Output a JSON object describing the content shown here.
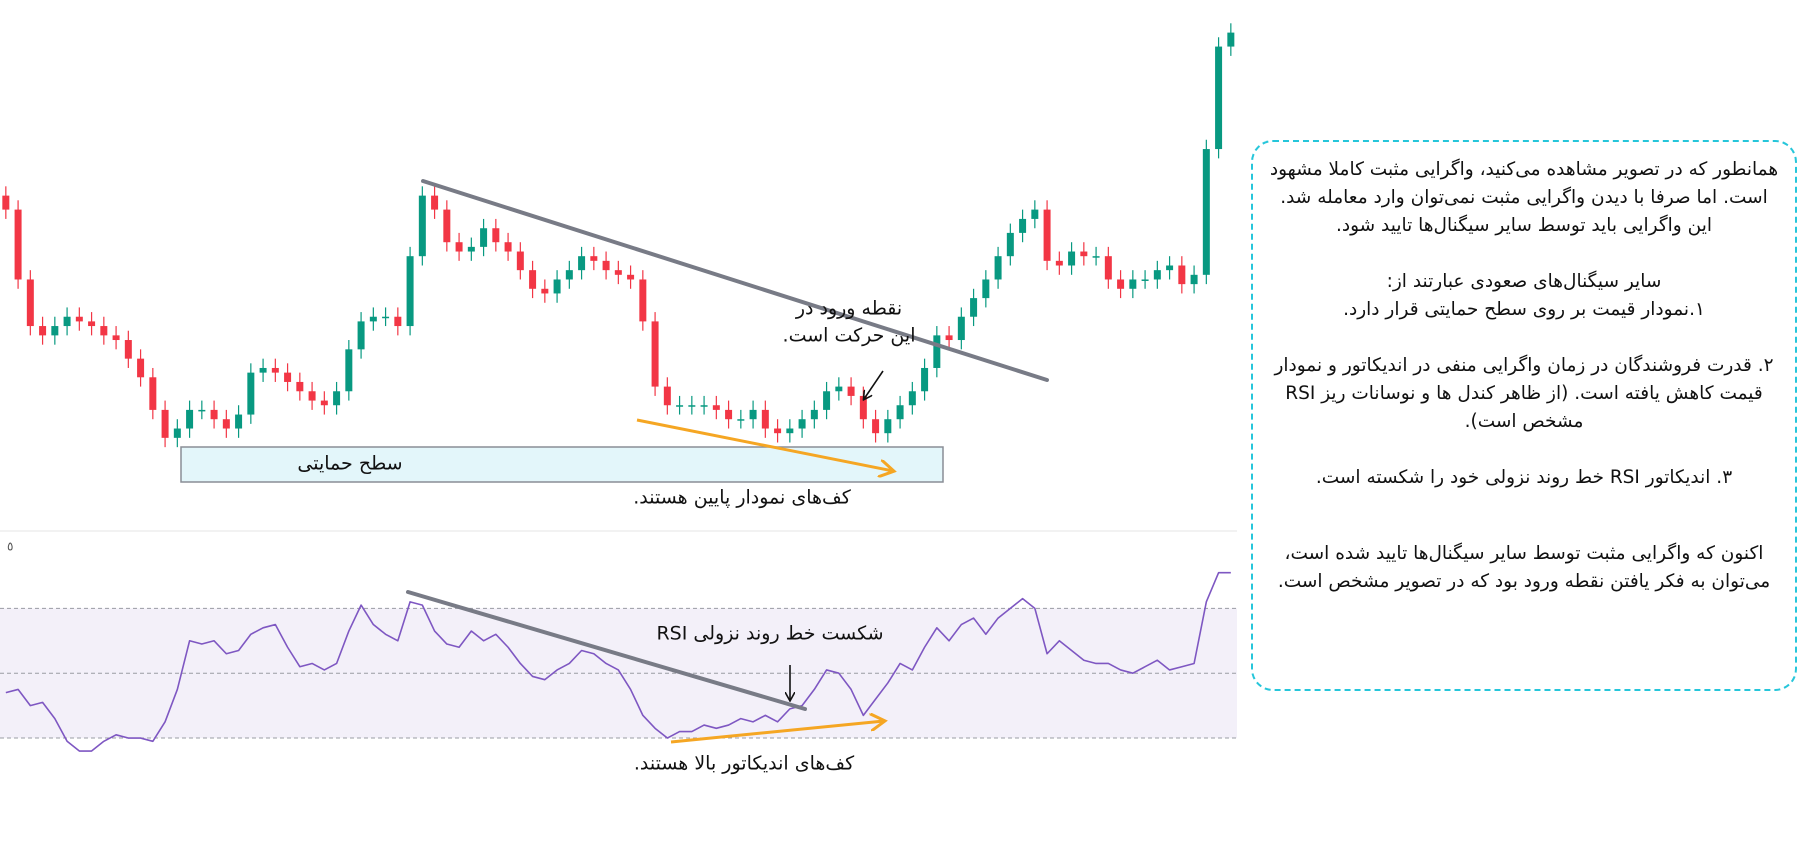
{
  "chart_data": [
    {
      "type": "candlestick",
      "open": [
        62,
        59,
        44,
        34,
        32,
        34,
        36,
        35,
        34,
        32,
        31,
        27,
        23,
        16,
        10,
        12,
        16,
        16,
        14,
        12,
        15,
        24,
        25,
        24,
        22,
        20,
        18,
        17,
        20,
        29,
        35,
        36,
        36,
        34,
        49,
        62,
        59,
        52,
        50,
        51,
        55,
        52,
        50,
        46,
        42,
        41,
        44,
        46,
        49,
        48,
        46,
        45,
        44,
        35,
        21,
        17,
        17,
        17,
        17,
        16,
        14,
        14,
        16,
        12,
        11,
        12,
        14,
        16,
        20,
        21,
        19,
        14,
        11,
        14,
        17,
        20,
        25,
        32,
        31,
        36,
        40,
        44,
        49,
        54,
        57,
        59,
        48,
        47,
        50,
        49,
        49,
        44,
        42,
        44,
        44,
        46,
        47,
        43,
        45,
        72,
        94
      ],
      "high": [
        64,
        61,
        46,
        36,
        36,
        38,
        38,
        37,
        36,
        34,
        33,
        29,
        25,
        18,
        14,
        18,
        18,
        18,
        16,
        17,
        26,
        27,
        27,
        26,
        24,
        22,
        20,
        22,
        31,
        37,
        38,
        38,
        38,
        51,
        64,
        64,
        61,
        54,
        53,
        57,
        57,
        54,
        52,
        48,
        44,
        46,
        48,
        51,
        51,
        50,
        48,
        47,
        46,
        37,
        23,
        19,
        19,
        19,
        19,
        18,
        16,
        18,
        18,
        14,
        14,
        16,
        18,
        22,
        23,
        23,
        21,
        16,
        16,
        19,
        22,
        27,
        34,
        34,
        38,
        42,
        46,
        51,
        56,
        59,
        61,
        61,
        50,
        52,
        52,
        51,
        51,
        46,
        46,
        46,
        48,
        49,
        49,
        47,
        74,
        96,
        99
      ],
      "low": [
        57,
        42,
        32,
        30,
        30,
        32,
        33,
        32,
        30,
        29,
        25,
        21,
        14,
        8,
        8,
        10,
        14,
        12,
        10,
        10,
        13,
        22,
        22,
        20,
        18,
        16,
        15,
        15,
        18,
        27,
        33,
        34,
        32,
        32,
        47,
        57,
        50,
        48,
        48,
        49,
        50,
        48,
        44,
        40,
        39,
        39,
        42,
        44,
        46,
        44,
        43,
        42,
        33,
        19,
        15,
        15,
        15,
        15,
        14,
        12,
        12,
        12,
        10,
        9,
        9,
        10,
        12,
        14,
        18,
        17,
        12,
        9,
        9,
        12,
        15,
        18,
        23,
        29,
        29,
        34,
        38,
        42,
        47,
        52,
        55,
        46,
        45,
        45,
        47,
        47,
        42,
        40,
        40,
        42,
        42,
        44,
        41,
        41,
        43,
        70,
        92
      ],
      "close": [
        59,
        44,
        34,
        32,
        34,
        36,
        35,
        34,
        32,
        31,
        27,
        23,
        16,
        10,
        12,
        16,
        16,
        14,
        12,
        15,
        24,
        25,
        24,
        22,
        20,
        18,
        17,
        20,
        29,
        35,
        36,
        36,
        34,
        49,
        62,
        59,
        52,
        50,
        51,
        55,
        52,
        50,
        46,
        42,
        41,
        44,
        46,
        49,
        48,
        46,
        45,
        44,
        35,
        21,
        17,
        17,
        17,
        17,
        16,
        14,
        14,
        16,
        12,
        11,
        12,
        14,
        16,
        20,
        21,
        19,
        14,
        11,
        14,
        17,
        20,
        25,
        32,
        31,
        36,
        40,
        44,
        49,
        54,
        57,
        59,
        48,
        47,
        50,
        49,
        49,
        44,
        42,
        44,
        44,
        46,
        47,
        43,
        45,
        72,
        94,
        97
      ],
      "ylim": [
        -10,
        104
      ],
      "up_color": "#089981",
      "down_color": "#f23645"
    },
    {
      "type": "line",
      "label": "٥",
      "values": [
        44,
        45,
        40,
        41,
        36,
        29,
        26,
        26,
        29,
        31,
        30,
        30,
        29,
        35,
        45,
        60,
        59,
        60,
        56,
        57,
        62,
        64,
        65,
        58,
        52,
        53,
        51,
        53,
        63,
        71,
        65,
        62,
        60,
        72,
        71,
        63,
        59,
        58,
        63,
        60,
        62,
        58,
        53,
        49,
        48,
        51,
        53,
        57,
        56,
        53,
        51,
        45,
        37,
        33,
        30,
        32,
        32,
        34,
        33,
        34,
        36,
        35,
        37,
        35,
        39,
        40,
        45,
        51,
        50,
        45,
        37,
        42,
        47,
        53,
        51,
        58,
        64,
        60,
        65,
        67,
        62,
        67,
        70,
        73,
        70,
        56,
        60,
        57,
        54,
        53,
        53,
        51,
        50,
        52,
        54,
        51,
        52,
        53,
        72,
        81,
        81
      ],
      "ylim": [
        22,
        92
      ],
      "levels": [
        30,
        50,
        70
      ],
      "color": "#7e57c2"
    }
  ],
  "annotations": {
    "entry_point": [
      "نقطه ورود در",
      "این حرکت است."
    ],
    "support_level": "سطح حمایتی",
    "price_lows": "کف‌های نمودار پایین هستند.",
    "rsi_break": "شکست خط روند نزولی RSI",
    "rsi_lows": "کف‌های اندیکاتور بالا هستند."
  },
  "text_box": {
    "paragraphs": [
      "همانطور که در تصویر مشاهده می‌کنید، واگرایی مثبت کاملا مشهود است. اما صرفا با دیدن واگرایی مثبت نمی‌توان وارد معامله شد. این واگرایی باید توسط سایر سیگنال‌ها تایید شود.",
      "سایر سیگنال‌های صعودی عبارتند از:",
      "۱.نمودار قیمت بر روی سطح حمایتی قرار دارد.",
      "۲. قدرت فروشندگان در زمان واگرایی منفی در اندیکاتور و نمودار قیمت کاهش یافته است. (از ظاهر کندل ها و نوسانات ریز RSI مشخص است).",
      "۳. اندیکاتور RSI خط روند نزولی خود را شکسته است.",
      "اکنون که واگرایی مثبت توسط سایر سیگنال‌ها تایید شده است، می‌توان به فکر یافتن نقطه ورود بود که در تصویر مشخص است."
    ]
  }
}
